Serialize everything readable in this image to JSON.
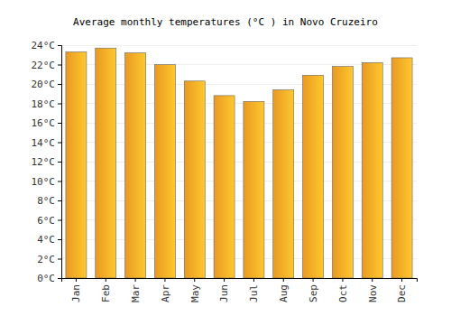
{
  "chart_data": {
    "type": "bar",
    "title": "Average monthly temperatures (°C ) in Novo Cruzeiro",
    "categories": [
      "Jan",
      "Feb",
      "Mar",
      "Apr",
      "May",
      "Jun",
      "Jul",
      "Aug",
      "Sep",
      "Oct",
      "Nov",
      "Dec"
    ],
    "values": [
      23.3,
      23.7,
      23.2,
      22.0,
      20.3,
      18.8,
      18.2,
      19.4,
      20.9,
      21.8,
      22.2,
      22.7
    ],
    "color": "#ffa726",
    "ylim": [
      0,
      24
    ],
    "yticks": [
      {
        "value": 0,
        "label": "0°C"
      },
      {
        "value": 2,
        "label": "2°C"
      },
      {
        "value": 4,
        "label": "4°C"
      },
      {
        "value": 6,
        "label": "6°C"
      },
      {
        "value": 8,
        "label": "8°C"
      },
      {
        "value": 10,
        "label": "10°C"
      },
      {
        "value": 12,
        "label": "12°C"
      },
      {
        "value": 14,
        "label": "14°C"
      },
      {
        "value": 16,
        "label": "16°C"
      },
      {
        "value": 18,
        "label": "18°C"
      },
      {
        "value": 20,
        "label": "20°C"
      },
      {
        "value": 22,
        "label": "22°C"
      },
      {
        "value": 24,
        "label": "24°C"
      }
    ],
    "grid": true
  }
}
